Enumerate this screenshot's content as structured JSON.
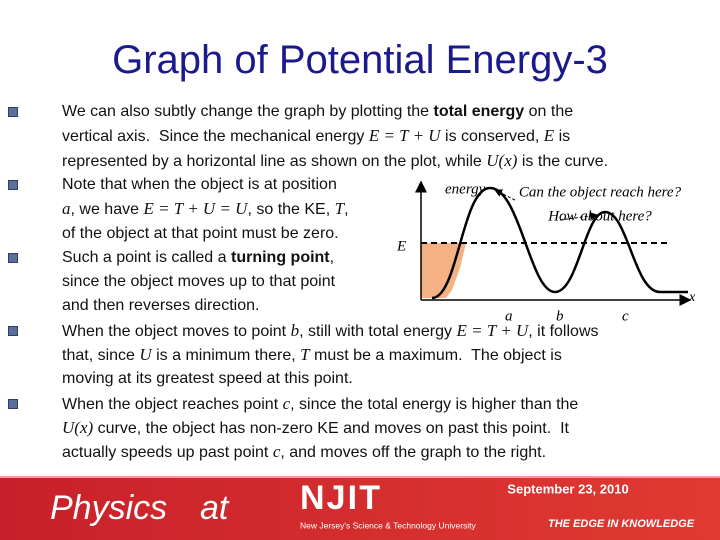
{
  "title": "Graph of Potential Energy-3",
  "bullets": [
    [
      [
        {
          "text": "We can also subtly change the graph by plotting the "
        },
        {
          "text": "total energy",
          "style": "bold"
        },
        {
          "text": " on the"
        }
      ],
      [
        {
          "text": "vertical axis.  Since the mechanical energy "
        },
        {
          "text": "E = T + U",
          "style": "italic"
        },
        {
          "text": " is conserved, "
        },
        {
          "text": "E",
          "style": "italic"
        },
        {
          "text": " is"
        }
      ],
      [
        {
          "text": "represented by a horizontal line as shown on the plot, while "
        },
        {
          "text": "U(x)",
          "style": "italic"
        },
        {
          "text": " is the curve."
        }
      ]
    ],
    [
      [
        {
          "text": "Note that when the object is at position"
        }
      ],
      [
        {
          "text": "a",
          "style": "italic"
        },
        {
          "text": ", we have "
        },
        {
          "text": "E = T + U = U",
          "style": "italic"
        },
        {
          "text": ", so the KE, "
        },
        {
          "text": "T",
          "style": "italic"
        },
        {
          "text": ","
        }
      ],
      [
        {
          "text": "of the object at that point must be zero."
        }
      ]
    ],
    [
      [
        {
          "text": "Such a point is called a "
        },
        {
          "text": "turning point",
          "style": "bold"
        },
        {
          "text": ","
        }
      ],
      [
        {
          "text": "since the object moves up to that point"
        }
      ],
      [
        {
          "text": "and then reverses direction."
        }
      ]
    ],
    [
      [
        {
          "text": "When the object moves to point "
        },
        {
          "text": "b",
          "style": "italic"
        },
        {
          "text": ", still with total energy "
        },
        {
          "text": "E = T + U",
          "style": "italic"
        },
        {
          "text": ", it follows"
        }
      ],
      [
        {
          "text": "that, since "
        },
        {
          "text": "U",
          "style": "italic"
        },
        {
          "text": " is a minimum there, "
        },
        {
          "text": "T",
          "style": "italic"
        },
        {
          "text": " must be a maximum.  The object is"
        }
      ],
      [
        {
          "text": "moving at its greatest speed at this point."
        }
      ]
    ],
    [
      [
        {
          "text": "When the object reaches point "
        },
        {
          "text": "c",
          "style": "italic"
        },
        {
          "text": ", since the total energy is higher than the"
        }
      ],
      [
        {
          "text": "U(x)",
          "style": "italic"
        },
        {
          "text": " curve, the object has non-zero KE and moves on past this point.  It"
        }
      ],
      [
        {
          "text": "actually speeds up past point "
        },
        {
          "text": "c",
          "style": "italic"
        },
        {
          "text": ", and moves off the graph to the right."
        }
      ]
    ]
  ],
  "figure": {
    "y_label": "energy",
    "question_1": "Can the object reach here?",
    "question_2": "How about here?",
    "energy_label": "E",
    "x_label": "x",
    "points": [
      "a",
      "b",
      "c"
    ]
  },
  "footer": {
    "date": "September 23, 2010",
    "logo_1": "Physics",
    "logo_2": "at",
    "logo_3": "NJIT",
    "university": "New Jersey's Science & Technology University",
    "motto": "THE EDGE IN KNOWLEDGE"
  }
}
